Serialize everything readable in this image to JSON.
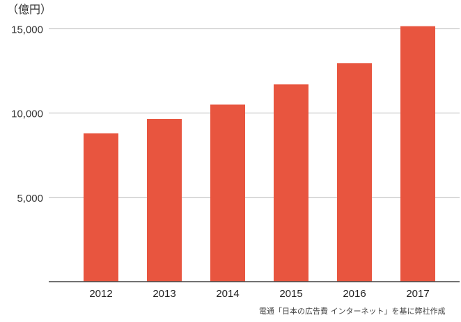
{
  "chart_data": {
    "type": "bar",
    "unit_label": "（億円）",
    "categories": [
      "2012",
      "2013",
      "2014",
      "2015",
      "2016",
      "2017"
    ],
    "values": [
      8800,
      9650,
      10500,
      11700,
      12950,
      15150
    ],
    "yticks": [
      5000,
      10000,
      15000
    ],
    "ytick_labels": [
      "5,000",
      "10,000",
      "15,000"
    ],
    "ylim": [
      0,
      16000
    ],
    "grid": true,
    "bar_color": "#e8553f",
    "source_note": "電通「日本の広告費 インターネット」を基に弊社作成"
  }
}
